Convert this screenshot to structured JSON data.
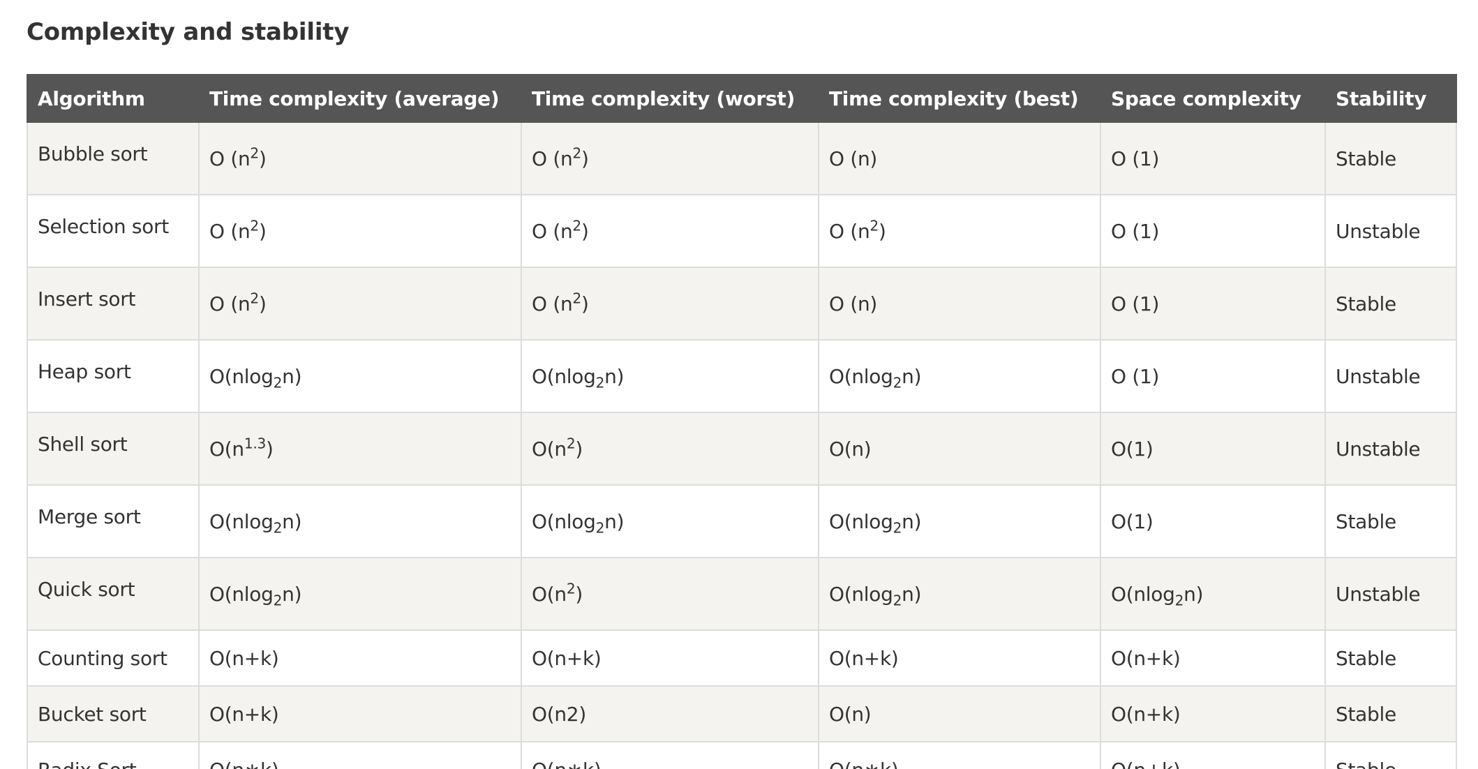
{
  "heading": "Complexity and stability",
  "table": {
    "headers": [
      "Algorithm",
      "Time complexity (average)",
      "Time complexity (worst)",
      "Time complexity (best)",
      "Space complexity",
      "Stability"
    ],
    "rows": [
      [
        "Bubble sort",
        "O (n<sup>2</sup>)",
        "O (n<sup>2</sup>)",
        "O (n)",
        "O (1)",
        "Stable"
      ],
      [
        "Selection sort",
        "O (n<sup>2</sup>)",
        "O (n<sup>2</sup>)",
        "O (n<sup>2</sup>)",
        "O (1)",
        "Unstable"
      ],
      [
        "Insert sort",
        "O (n<sup>2</sup>)",
        "O (n<sup>2</sup>)",
        "O (n)",
        "O (1)",
        "Stable"
      ],
      [
        "Heap sort",
        "O(nlog<sub>2</sub>n)",
        "O(nlog<sub>2</sub>n)",
        "O(nlog<sub>2</sub>n)",
        "O (1)",
        "Unstable"
      ],
      [
        "Shell sort",
        "O(n<sup>1.3</sup>)",
        "O(n<sup>2</sup>)",
        "O(n)",
        "O(1)",
        "Unstable"
      ],
      [
        "Merge sort",
        "O(nlog<sub>2</sub>n)",
        "O(nlog<sub>2</sub>n)",
        "O(nlog<sub>2</sub>n)",
        "O(1)",
        "Stable"
      ],
      [
        "Quick sort",
        "O(nlog<sub>2</sub>n)",
        "O(n<sup>2</sup>)",
        "O(nlog<sub>2</sub>n)",
        "O(nlog<sub>2</sub>n)",
        "Unstable"
      ],
      [
        "Counting sort",
        "O(n+k)",
        "O(n+k)",
        "O(n+k)",
        "O(n+k)",
        "Stable"
      ],
      [
        "Bucket sort",
        "O(n+k)",
        "O(n2)",
        "O(n)",
        "O(n+k)",
        "Stable"
      ],
      [
        "Radix Sort",
        "O(n∗k)",
        "O(n∗k)",
        "O(n∗k)",
        "O(n+k)",
        "Stable"
      ]
    ]
  }
}
